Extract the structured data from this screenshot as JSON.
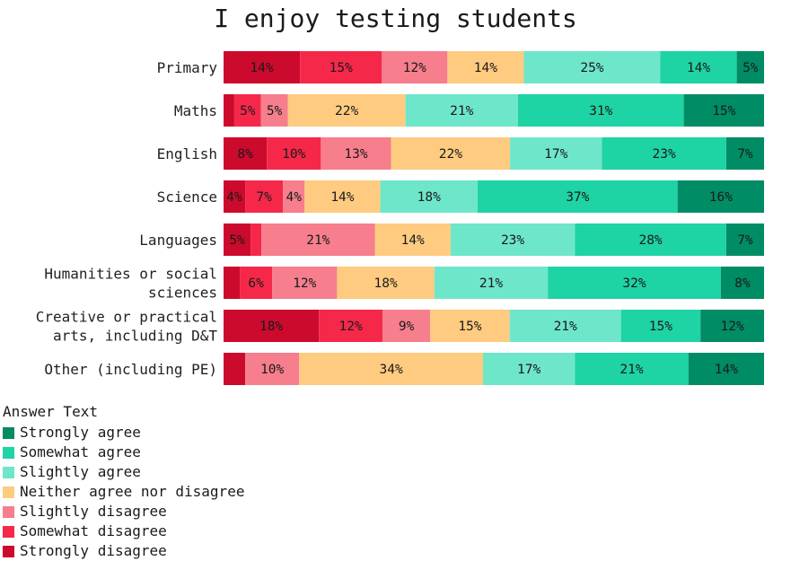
{
  "chart_data": {
    "type": "bar",
    "orientation": "horizontal",
    "stacked": true,
    "normalized": true,
    "title": "I enjoy testing students",
    "legend_title": "Answer Text",
    "legend_position": "bottom-left",
    "categories": [
      "Primary",
      "Maths",
      "English",
      "Science",
      "Languages",
      "Humanities or social sciences",
      "Creative or practical arts, including D&T",
      "Other (including PE)"
    ],
    "category_lines": [
      [
        "Primary"
      ],
      [
        "Maths"
      ],
      [
        "English"
      ],
      [
        "Science"
      ],
      [
        "Languages"
      ],
      [
        "Humanities or social",
        "sciences"
      ],
      [
        "Creative or practical",
        "arts, including D&T"
      ],
      [
        "Other (including PE)"
      ]
    ],
    "series": [
      {
        "name": "Strongly disagree",
        "color": "#cc0a2d",
        "values": [
          14,
          2,
          8,
          4,
          5,
          3,
          18,
          4
        ]
      },
      {
        "name": "Somewhat disagree",
        "color": "#f5284a",
        "values": [
          15,
          5,
          10,
          7,
          2,
          6,
          12,
          0
        ]
      },
      {
        "name": "Slightly disagree",
        "color": "#f67e8d",
        "values": [
          12,
          5,
          13,
          4,
          21,
          12,
          9,
          10
        ]
      },
      {
        "name": "Neither agree nor disagree",
        "color": "#fecb80",
        "values": [
          14,
          22,
          22,
          14,
          14,
          18,
          15,
          34
        ]
      },
      {
        "name": "Slightly agree",
        "color": "#6ee6c9",
        "values": [
          25,
          21,
          17,
          18,
          23,
          21,
          21,
          17
        ]
      },
      {
        "name": "Somewhat agree",
        "color": "#1ed3a4",
        "values": [
          14,
          31,
          23,
          37,
          28,
          32,
          15,
          21
        ]
      },
      {
        "name": "Strongly agree",
        "color": "#008c64",
        "values": [
          5,
          15,
          7,
          16,
          7,
          8,
          12,
          14
        ]
      }
    ],
    "labels": [
      [
        "14%",
        "",
        "8%",
        "4%",
        "5%",
        "",
        "18%",
        ""
      ],
      [
        "15%",
        "5%",
        "10%",
        "7%",
        "",
        "6%",
        "12%",
        ""
      ],
      [
        "12%",
        "5%",
        "13%",
        "4%",
        "21%",
        "12%",
        "9%",
        "10%"
      ],
      [
        "14%",
        "22%",
        "22%",
        "14%",
        "14%",
        "18%",
        "15%",
        "34%"
      ],
      [
        "25%",
        "21%",
        "17%",
        "18%",
        "23%",
        "21%",
        "21%",
        "17%"
      ],
      [
        "14%",
        "31%",
        "23%",
        "37%",
        "28%",
        "32%",
        "15%",
        "21%"
      ],
      [
        "5%",
        "15%",
        "7%",
        "16%",
        "7%",
        "8%",
        "12%",
        "14%"
      ]
    ],
    "legend_order": [
      "Strongly agree",
      "Somewhat agree",
      "Slightly agree",
      "Neither agree nor disagree",
      "Slightly disagree",
      "Somewhat disagree",
      "Strongly disagree"
    ],
    "xlim": [
      0,
      100
    ],
    "grid": false
  }
}
